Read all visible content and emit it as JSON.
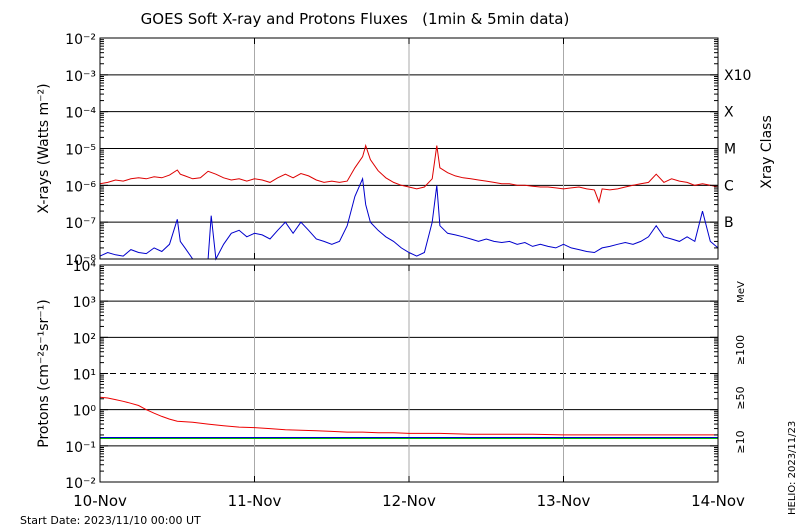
{
  "title": "GOES Soft X-ray and Protons Fluxes   (1min & 5min data)",
  "start_date": "Start Date: 2023/11/10 00:00 UT",
  "credit": "HELIO: 2023/11/23",
  "colors": {
    "xray_long": "#dd0000",
    "xray_short": "#0000cc",
    "proton_10": "#ee0000",
    "proton_50": "#0000cc",
    "proton_100": "#00bb00",
    "gridline": "#000000",
    "day_line": "#aaaaaa"
  },
  "chart_data": [
    {
      "type": "line",
      "panel": "xray",
      "ylabel": "X-rays (Watts m⁻²)",
      "y_scale": "log",
      "ylim": [
        1e-08,
        0.01
      ],
      "y_ticks": [
        "10⁻⁸",
        "10⁻⁷",
        "10⁻⁶",
        "10⁻⁵",
        "10⁻⁴",
        "10⁻³",
        "10⁻²"
      ],
      "xlim": [
        "2023-11-10",
        "2023-11-14"
      ],
      "x_ticks": [
        "10-Nov",
        "11-Nov",
        "12-Nov",
        "13-Nov",
        "14-Nov"
      ],
      "grid": true,
      "right_axis_label": "Xray Class",
      "class_labels": [
        {
          "label": "B",
          "value": 1e-07
        },
        {
          "label": "C",
          "value": 1e-06
        },
        {
          "label": "M",
          "value": 1e-05
        },
        {
          "label": "X",
          "value": 0.0001
        },
        {
          "label": "X10",
          "value": 0.001
        }
      ],
      "series": [
        {
          "key": "long",
          "color": "#dd0000",
          "x": [
            0,
            0.05,
            0.1,
            0.15,
            0.2,
            0.25,
            0.3,
            0.35,
            0.4,
            0.45,
            0.5,
            0.52,
            0.55,
            0.6,
            0.65,
            0.7,
            0.75,
            0.8,
            0.85,
            0.9,
            0.95,
            1.0,
            1.05,
            1.1,
            1.15,
            1.2,
            1.25,
            1.3,
            1.35,
            1.4,
            1.45,
            1.5,
            1.55,
            1.6,
            1.65,
            1.7,
            1.72,
            1.75,
            1.8,
            1.85,
            1.9,
            1.95,
            2.0,
            2.05,
            2.1,
            2.15,
            2.18,
            2.2,
            2.25,
            2.3,
            2.35,
            2.4,
            2.45,
            2.5,
            2.55,
            2.6,
            2.65,
            2.7,
            2.75,
            2.8,
            2.85,
            2.9,
            2.95,
            3.0,
            3.05,
            3.1,
            3.15,
            3.2,
            3.23,
            3.25,
            3.3,
            3.35,
            3.4,
            3.45,
            3.5,
            3.55,
            3.6,
            3.65,
            3.7,
            3.75,
            3.8,
            3.85,
            3.9,
            3.95,
            4.0
          ],
          "values": [
            1.1e-06,
            1.2e-06,
            1.4e-06,
            1.3e-06,
            1.5e-06,
            1.6e-06,
            1.5e-06,
            1.7e-06,
            1.6e-06,
            1.9e-06,
            2.6e-06,
            2e-06,
            1.8e-06,
            1.5e-06,
            1.6e-06,
            2.4e-06,
            2e-06,
            1.6e-06,
            1.4e-06,
            1.5e-06,
            1.3e-06,
            1.5e-06,
            1.4e-06,
            1.2e-06,
            1.6e-06,
            2e-06,
            1.6e-06,
            2.1e-06,
            1.8e-06,
            1.4e-06,
            1.2e-06,
            1.3e-06,
            1.2e-06,
            1.3e-06,
            3e-06,
            6e-06,
            1.2e-05,
            5e-06,
            2.5e-06,
            1.6e-06,
            1.2e-06,
            1e-06,
            9e-07,
            8e-07,
            9e-07,
            1.5e-06,
            1.2e-05,
            3e-06,
            2.2e-06,
            1.8e-06,
            1.6e-06,
            1.5e-06,
            1.4e-06,
            1.3e-06,
            1.2e-06,
            1.1e-06,
            1.1e-06,
            1e-06,
            1e-06,
            9.5e-07,
            9e-07,
            9e-07,
            8.5e-07,
            8e-07,
            8.5e-07,
            9e-07,
            8e-07,
            7.5e-07,
            3.5e-07,
            8e-07,
            7.5e-07,
            8e-07,
            9e-07,
            1e-06,
            1.1e-06,
            1.2e-06,
            2e-06,
            1.2e-06,
            1.5e-06,
            1.3e-06,
            1.2e-06,
            1e-06,
            1.1e-06,
            1e-06,
            9e-07
          ]
        },
        {
          "key": "short",
          "color": "#0000cc",
          "x": [
            0,
            0.05,
            0.1,
            0.15,
            0.2,
            0.25,
            0.3,
            0.35,
            0.4,
            0.45,
            0.5,
            0.52,
            0.55,
            0.6,
            0.65,
            0.7,
            0.72,
            0.75,
            0.8,
            0.85,
            0.9,
            0.95,
            1.0,
            1.05,
            1.1,
            1.15,
            1.2,
            1.25,
            1.3,
            1.35,
            1.4,
            1.45,
            1.5,
            1.55,
            1.6,
            1.65,
            1.7,
            1.72,
            1.75,
            1.8,
            1.85,
            1.9,
            1.95,
            2.0,
            2.05,
            2.1,
            2.15,
            2.18,
            2.2,
            2.25,
            2.3,
            2.35,
            2.4,
            2.45,
            2.5,
            2.55,
            2.6,
            2.65,
            2.7,
            2.75,
            2.8,
            2.85,
            2.9,
            2.95,
            3.0,
            3.05,
            3.1,
            3.15,
            3.2,
            3.25,
            3.3,
            3.35,
            3.4,
            3.45,
            3.5,
            3.55,
            3.6,
            3.65,
            3.7,
            3.75,
            3.8,
            3.85,
            3.9,
            3.95,
            4.0
          ],
          "values": [
            1.2e-08,
            1.5e-08,
            1.3e-08,
            1.2e-08,
            1.8e-08,
            1.5e-08,
            1.4e-08,
            2e-08,
            1.6e-08,
            2.5e-08,
            1.2e-07,
            3e-08,
            2e-08,
            1e-08,
            1e-08,
            1e-08,
            1.5e-07,
            1e-08,
            2.5e-08,
            5e-08,
            6e-08,
            4e-08,
            5e-08,
            4.5e-08,
            3.5e-08,
            6e-08,
            1e-07,
            5e-08,
            1e-07,
            6e-08,
            3.5e-08,
            3e-08,
            2.5e-08,
            3e-08,
            8e-08,
            5e-07,
            1.5e-06,
            3e-07,
            1e-07,
            6e-08,
            4e-08,
            3e-08,
            2e-08,
            1.5e-08,
            1.2e-08,
            1.5e-08,
            1e-07,
            1e-06,
            8e-08,
            5e-08,
            4.5e-08,
            4e-08,
            3.5e-08,
            3e-08,
            3.5e-08,
            3e-08,
            2.8e-08,
            3e-08,
            2.5e-08,
            2.8e-08,
            2.2e-08,
            2.5e-08,
            2.2e-08,
            2e-08,
            2.5e-08,
            2e-08,
            1.8e-08,
            1.6e-08,
            1.5e-08,
            2e-08,
            2.2e-08,
            2.5e-08,
            2.8e-08,
            2.5e-08,
            3e-08,
            4e-08,
            8e-08,
            4e-08,
            3.5e-08,
            3e-08,
            4e-08,
            3e-08,
            2e-07,
            3e-08,
            2e-08
          ]
        }
      ]
    },
    {
      "type": "line",
      "panel": "protons",
      "ylabel": "Protons (cm⁻²s⁻¹sr⁻¹)",
      "y_scale": "log",
      "ylim": [
        0.01,
        10000
      ],
      "y_ticks": [
        "10⁻²",
        "10⁻¹",
        "10⁰",
        "10¹",
        "10²",
        "10³",
        "10⁴"
      ],
      "xlim": [
        "2023-11-10",
        "2023-11-14"
      ],
      "x_ticks": [
        "10-Nov",
        "11-Nov",
        "12-Nov",
        "13-Nov",
        "14-Nov"
      ],
      "grid": true,
      "threshold": 10,
      "right_axis_unit": "MeV",
      "series": [
        {
          "key": "p10",
          "label": "≥10",
          "color": "#ee0000",
          "x": [
            0,
            0.05,
            0.1,
            0.15,
            0.2,
            0.25,
            0.3,
            0.35,
            0.4,
            0.45,
            0.5,
            0.6,
            0.7,
            0.8,
            0.9,
            1.0,
            1.1,
            1.2,
            1.3,
            1.4,
            1.5,
            1.6,
            1.7,
            1.8,
            1.9,
            2.0,
            2.2,
            2.4,
            2.6,
            2.8,
            3.0,
            3.2,
            3.4,
            3.6,
            3.8,
            4.0
          ],
          "values": [
            2.2,
            2.1,
            1.9,
            1.7,
            1.5,
            1.3,
            1.0,
            0.8,
            0.65,
            0.55,
            0.48,
            0.45,
            0.4,
            0.36,
            0.33,
            0.32,
            0.3,
            0.28,
            0.27,
            0.26,
            0.25,
            0.24,
            0.24,
            0.23,
            0.23,
            0.22,
            0.22,
            0.21,
            0.21,
            0.21,
            0.2,
            0.2,
            0.2,
            0.2,
            0.2,
            0.2
          ]
        },
        {
          "key": "p50",
          "label": "≥50",
          "color": "#0000cc",
          "x": [
            0,
            0.5,
            1.0,
            1.5,
            2.0,
            2.5,
            3.0,
            3.5,
            4.0
          ],
          "values": [
            0.17,
            0.17,
            0.17,
            0.17,
            0.17,
            0.17,
            0.17,
            0.17,
            0.17
          ]
        },
        {
          "key": "p100",
          "label": "≥100",
          "color": "#00bb00",
          "x": [
            0,
            0.5,
            1.0,
            1.5,
            2.0,
            2.5,
            3.0,
            3.5,
            4.0
          ],
          "values": [
            0.16,
            0.16,
            0.16,
            0.16,
            0.16,
            0.16,
            0.16,
            0.16,
            0.16
          ]
        }
      ]
    }
  ]
}
